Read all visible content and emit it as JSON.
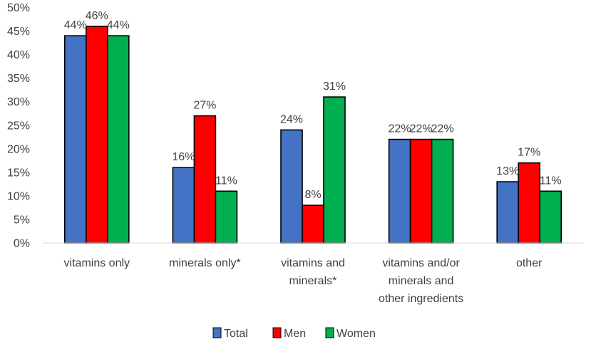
{
  "chart_data": {
    "type": "bar",
    "categories": [
      [
        "vitamins only"
      ],
      [
        "minerals only*"
      ],
      [
        "vitamins and",
        "minerals*"
      ],
      [
        "vitamins and/or",
        "minerals and",
        "other ingredients"
      ],
      [
        "other"
      ]
    ],
    "series": [
      {
        "name": "Total",
        "color": "#4472c4",
        "values": [
          44,
          16,
          24,
          22,
          13
        ]
      },
      {
        "name": "Men",
        "color": "#ff0000",
        "values": [
          46,
          27,
          8,
          22,
          17
        ]
      },
      {
        "name": "Women",
        "color": "#00b050",
        "values": [
          44,
          11,
          31,
          22,
          11
        ]
      }
    ],
    "value_suffix": "%",
    "ylim": [
      0,
      50
    ],
    "ytick_step": 5,
    "yticks": [
      "0%",
      "5%",
      "10%",
      "15%",
      "20%",
      "25%",
      "30%",
      "35%",
      "40%",
      "45%",
      "50%"
    ],
    "title": "",
    "xlabel": "",
    "ylabel": "",
    "grid": false,
    "legend_position": "bottom"
  }
}
